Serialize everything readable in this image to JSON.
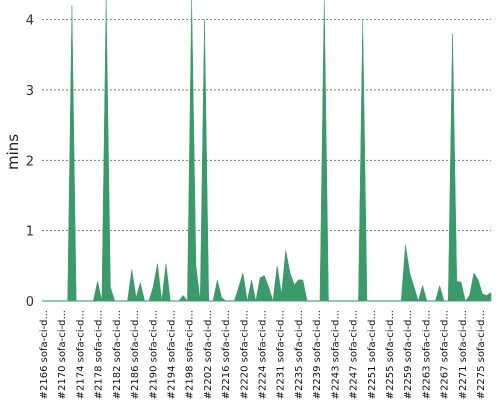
{
  "chart_data": {
    "type": "area",
    "ylabel": "mins",
    "ylim": [
      0,
      4.25
    ],
    "y_ticks": [
      0,
      1,
      2,
      3,
      4
    ],
    "grid": true,
    "color": "#3a9a6a",
    "baseline_color": "#c9e8d6",
    "x_labels": [
      "#2166 sofa-ci-d...",
      "#2170 sofa-ci-d...",
      "#2174 sofa-ci-d...",
      "#2178 sofa-ci-d...",
      "#2182 sofa-ci-d...",
      "#2186 sofa-ci-d...",
      "#2190 sofa-ci-d...",
      "#2194 sofa-ci-d...",
      "#2198 sofa-ci-d...",
      "#2202 sofa-ci-d...",
      "#2216 sofa-ci-d...",
      "#2220 sofa-ci-d...",
      "#2224 sofa-ci-d...",
      "#2231 sofa-ci-d...",
      "#2235 sofa-ci-d...",
      "#2239 sofa-ci-d...",
      "#2243 sofa-ci-d...",
      "#2247 sofa-ci-d...",
      "#2251 sofa-ci-d...",
      "#2255 sofa-ci-d...",
      "#2259 sofa-ci-d...",
      "#2263 sofa-ci-d...",
      "#2267 sofa-ci-d...",
      "#2271 sofa-ci-d...",
      "#2275 sofa-ci-d..."
    ],
    "values": [
      0,
      0,
      0,
      0,
      0,
      0,
      0,
      4.2,
      0,
      0,
      0,
      0,
      0,
      0.28,
      0,
      4.3,
      0.2,
      0,
      0,
      0,
      0,
      0.45,
      0.05,
      0.26,
      0,
      0,
      0.2,
      0.53,
      0,
      0.53,
      0,
      0,
      0,
      0.08,
      0,
      4.3,
      0.5,
      0,
      4.0,
      0,
      0,
      0.3,
      0.05,
      0,
      0,
      0,
      0.2,
      0.4,
      0,
      0.3,
      0,
      0.33,
      0.36,
      0.2,
      0,
      0.5,
      0.1,
      0.72,
      0.4,
      0.23,
      0.3,
      0.3,
      0,
      0,
      0,
      0,
      4.3,
      0,
      0,
      0,
      0,
      0,
      0,
      0,
      0,
      4.0,
      0,
      0,
      0,
      0,
      0,
      0,
      0,
      0,
      0,
      0.8,
      0.4,
      0.2,
      0,
      0.22,
      0,
      0,
      0,
      0.22,
      0,
      0,
      3.8,
      0.28,
      0.27,
      0,
      0.08,
      0.4,
      0.3,
      0.1,
      0.08,
      0.12
    ]
  }
}
